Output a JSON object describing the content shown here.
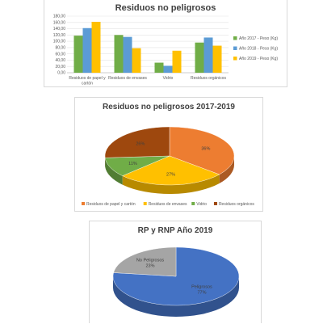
{
  "chart_data": [
    {
      "type": "bar",
      "title": "Residuos no peligrosos",
      "categories": [
        "Residuos de papel y cartón",
        "Residuos de envases",
        "Vidrio",
        "Residuos orgánicos"
      ],
      "series": [
        {
          "name": "Año 2017 - Peso (Kg)",
          "color": "#70ad47",
          "values": [
            118,
            120,
            32,
            96
          ]
        },
        {
          "name": "Año 2018 - Peso (Kg)",
          "color": "#5b9bd5",
          "values": [
            142,
            114,
            22,
            112
          ]
        },
        {
          "name": "Año 2019 - Peso (Kg)",
          "color": "#ffc000",
          "values": [
            162,
            78,
            70,
            86
          ]
        }
      ],
      "yticks": [
        "180,00",
        "160,00",
        "140,00",
        "120,00",
        "100,00",
        "80,00",
        "60,00",
        "40,00",
        "20,00",
        "0,00"
      ],
      "ylim": [
        0,
        180
      ],
      "grid": true,
      "legend": "right"
    },
    {
      "type": "pie",
      "title": "Residuos no peligrosos 2017-2019",
      "slices": [
        {
          "name": "Residuos de papel y cartón",
          "value": 36,
          "label": "36%",
          "color": "#ed7d31"
        },
        {
          "name": "Residuos de envases",
          "value": 27,
          "label": "27%",
          "color": "#ffc000"
        },
        {
          "name": "Vidrio",
          "value": 11,
          "label": "11%",
          "color": "#70ad47"
        },
        {
          "name": "Residuos orgánicos",
          "value": 26,
          "label": "26%",
          "color": "#9e480e"
        }
      ],
      "legend": "bottom"
    },
    {
      "type": "pie",
      "title": "RP y RNP Año 2019",
      "slices": [
        {
          "name": "Peligrosos",
          "value": 77,
          "label": "77%",
          "color": "#4472c4"
        },
        {
          "name": "No Peligrosos",
          "value": 23,
          "label": "23%",
          "color": "#a5a5a5"
        }
      ]
    }
  ]
}
